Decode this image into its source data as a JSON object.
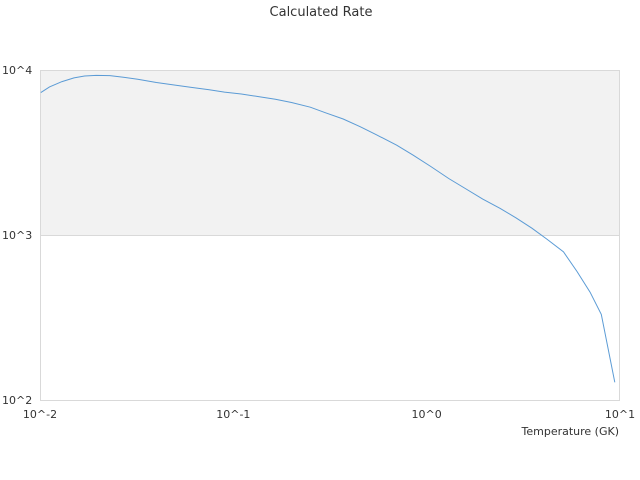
{
  "chart_data": {
    "type": "line",
    "title": "Calculated Rate",
    "xlabel": "Temperature (GK)",
    "ylabel": "",
    "xscale": "log",
    "yscale": "log",
    "xlim": [
      0.01,
      10
    ],
    "ylim": [
      100,
      10000
    ],
    "x_tick_labels": [
      "10^-2",
      "10^-1",
      "10^0",
      "10^1"
    ],
    "y_tick_labels": [
      "10^2",
      "10^3",
      "10^4"
    ],
    "x_tick_values": [
      0.01,
      0.1,
      1,
      10
    ],
    "y_tick_values": [
      100,
      1000,
      10000
    ],
    "grid": false,
    "legend": "none",
    "shaded_band": {
      "y_from": 1000,
      "y_to": 10000,
      "color": "#f2f2f2"
    },
    "colors": {
      "series": "#5b9bd5",
      "axis": "#d9d9d9"
    },
    "series": [
      {
        "x": [
          0.0101,
          0.0112,
          0.013,
          0.015,
          0.017,
          0.0195,
          0.023,
          0.027,
          0.032,
          0.04,
          0.05,
          0.06,
          0.075,
          0.09,
          0.11,
          0.135,
          0.165,
          0.2,
          0.25,
          0.3,
          0.37,
          0.45,
          0.55,
          0.7,
          0.85,
          1.05,
          1.3,
          1.6,
          1.95,
          2.4,
          2.9,
          3.5,
          4.2,
          5.1,
          6.0,
          7.0,
          8.0,
          9.4
        ],
        "y": [
          7300,
          7900,
          8500,
          8950,
          9200,
          9280,
          9250,
          9050,
          8800,
          8400,
          8100,
          7850,
          7600,
          7350,
          7150,
          6900,
          6650,
          6350,
          5950,
          5500,
          5050,
          4550,
          4050,
          3500,
          3050,
          2600,
          2200,
          1900,
          1650,
          1450,
          1270,
          1100,
          940,
          790,
          600,
          450,
          330,
          128
        ]
      }
    ]
  }
}
